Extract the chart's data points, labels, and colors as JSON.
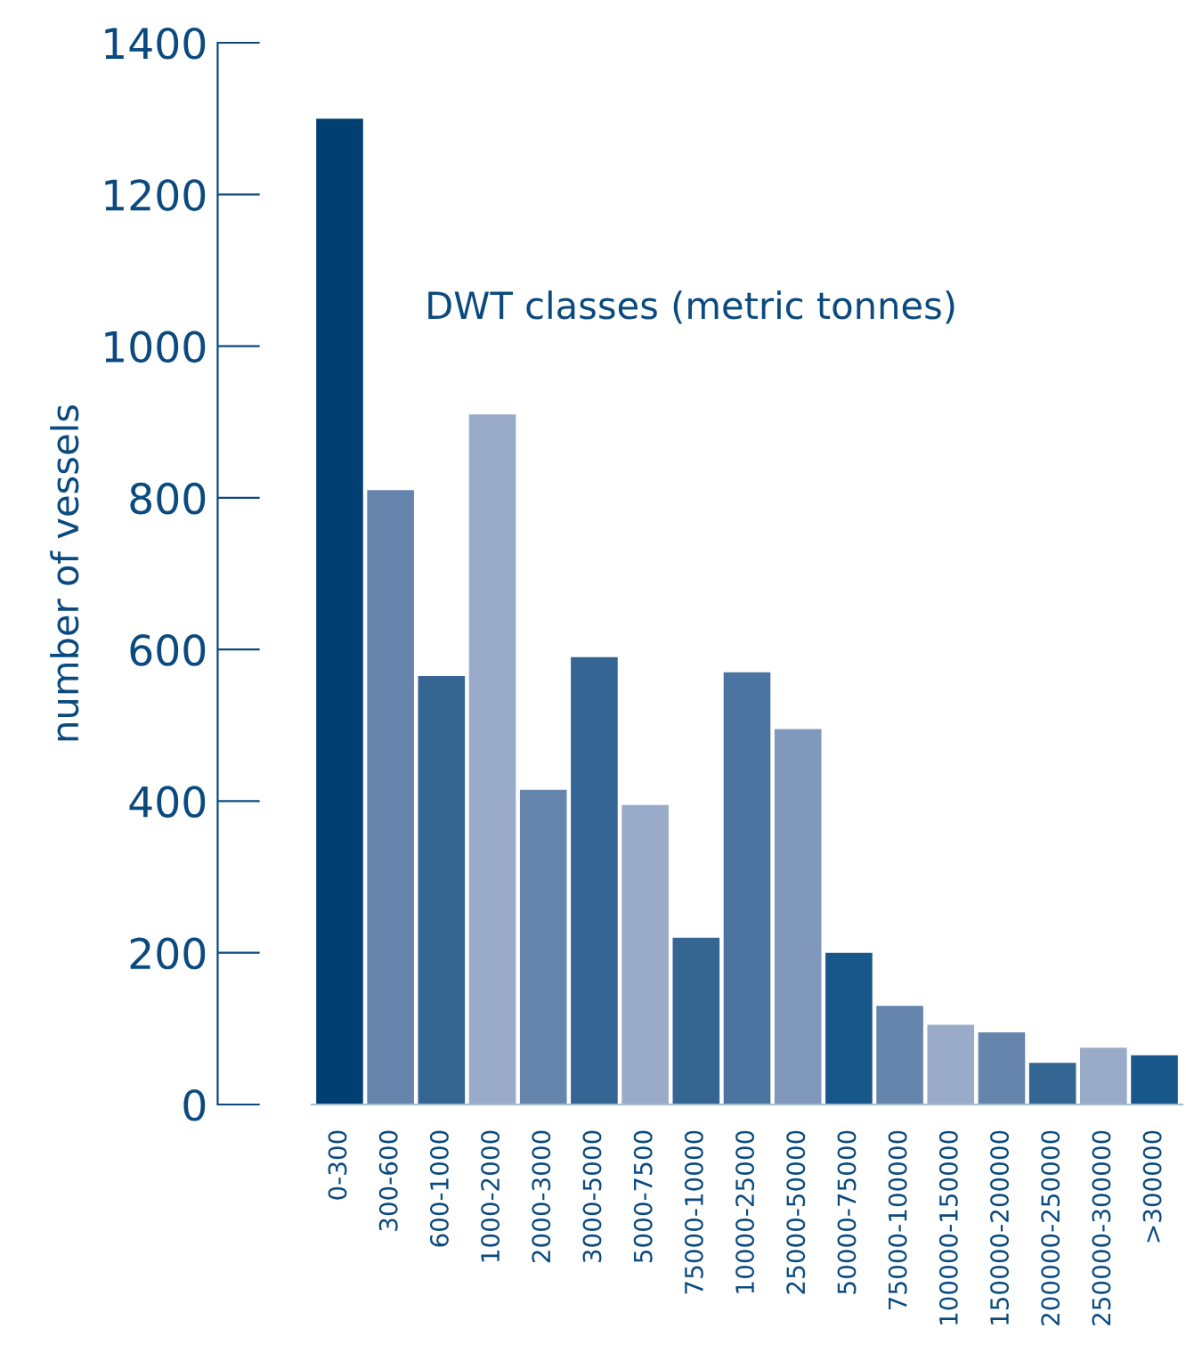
{
  "chart_data": {
    "type": "bar",
    "ylabel": "number of vessels",
    "annotations": [
      "DWT classes (metric tonnes)"
    ],
    "categories": [
      "0-300",
      "300-600",
      "600-1000",
      "1000-2000",
      "2000-3000",
      "3000-5000",
      "5000-7500",
      "75000-10000",
      "10000-25000",
      "25000-50000",
      "50000-75000",
      "75000-100000",
      "100000-150000",
      "150000-200000",
      "200000-250000",
      "250000-300000",
      ">300000"
    ],
    "values": [
      1300,
      810,
      565,
      910,
      415,
      590,
      395,
      220,
      570,
      495,
      200,
      130,
      105,
      95,
      55,
      75,
      65
    ],
    "colors": [
      "#003f72",
      "#6685ad",
      "#356593",
      "#99abc9",
      "#6685ad",
      "#356593",
      "#99abc9",
      "#356593",
      "#4c74a0",
      "#7f98bc",
      "#175789",
      "#6685ad",
      "#99abc9",
      "#6685ad",
      "#356593",
      "#99abc9",
      "#175789"
    ],
    "ylim": [
      0,
      1400
    ],
    "yticks": [
      0,
      200,
      400,
      600,
      800,
      1000,
      1200,
      1400
    ],
    "grid": false,
    "legend": false
  }
}
